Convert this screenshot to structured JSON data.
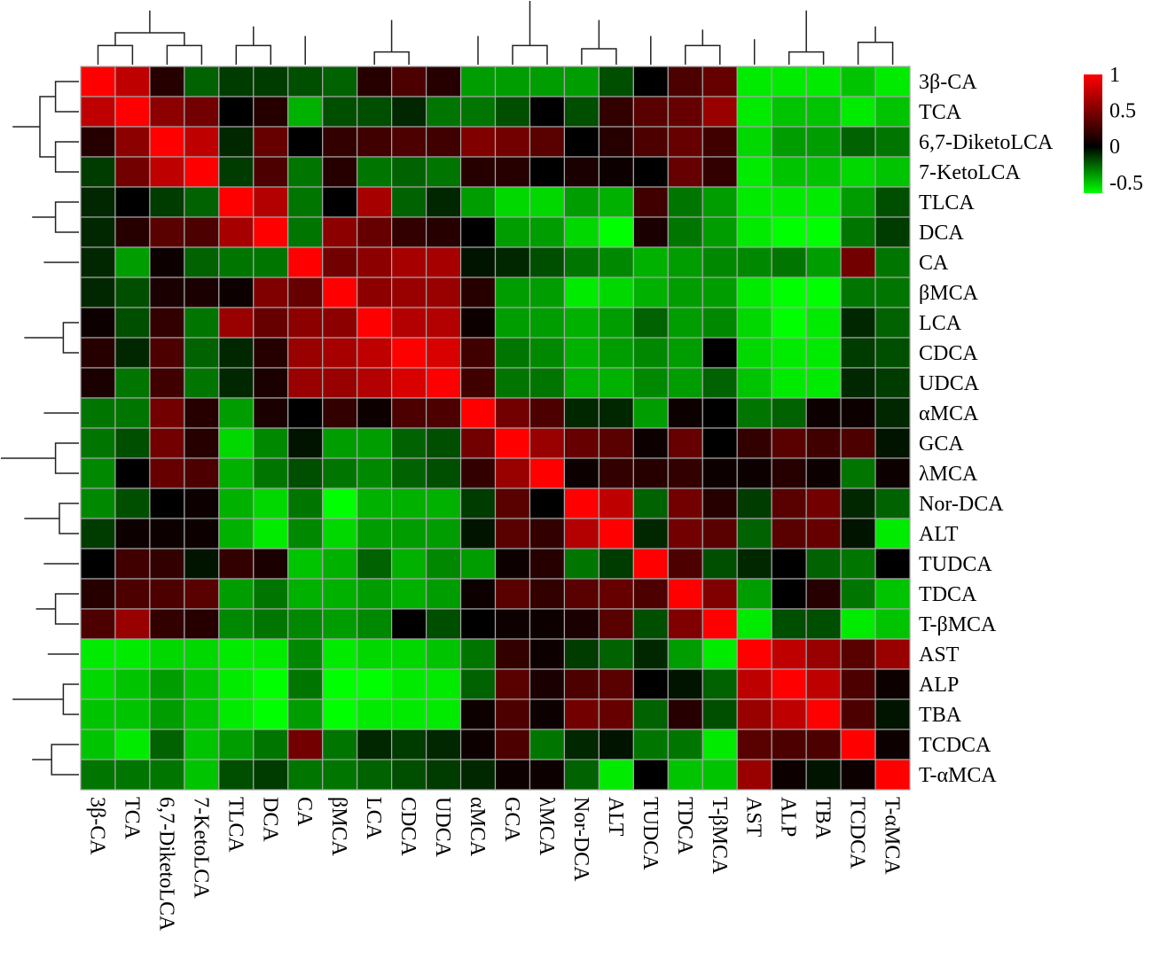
{
  "chart_data": {
    "type": "heatmap",
    "labels": [
      "3β-CA",
      "TCA",
      "6,7-DiketoLCA",
      "7-KetoLCA",
      "TLCA",
      "DCA",
      "CA",
      "βMCA",
      "LCA",
      "CDCA",
      "UDCA",
      "αMCA",
      "GCA",
      "λMCA",
      "Nor-DCA",
      "ALT",
      "TUDCA",
      "TDCA",
      "T-βMCA",
      "AST",
      "ALP",
      "TBA",
      "TCDCA",
      "T-αMCA"
    ],
    "values": [
      [
        1.0,
        0.75,
        0.15,
        -0.25,
        -0.15,
        -0.15,
        -0.2,
        -0.25,
        0.15,
        0.3,
        0.15,
        -0.4,
        -0.4,
        -0.4,
        -0.4,
        -0.2,
        0.0,
        0.3,
        0.4,
        -0.6,
        -0.6,
        -0.6,
        -0.5,
        -0.6
      ],
      [
        0.75,
        1.0,
        0.55,
        0.45,
        0.0,
        0.15,
        -0.45,
        -0.2,
        -0.2,
        -0.1,
        -0.3,
        -0.3,
        -0.2,
        0.0,
        -0.2,
        0.2,
        0.35,
        0.4,
        0.6,
        -0.6,
        -0.5,
        -0.5,
        -0.6,
        -0.5
      ],
      [
        0.15,
        0.55,
        1.0,
        0.75,
        -0.1,
        0.4,
        0.0,
        0.2,
        0.25,
        0.3,
        0.25,
        0.5,
        0.45,
        0.35,
        0.0,
        0.15,
        0.3,
        0.4,
        0.25,
        -0.55,
        -0.4,
        -0.4,
        -0.25,
        -0.3
      ],
      [
        -0.15,
        0.45,
        0.75,
        1.0,
        -0.15,
        0.3,
        -0.3,
        0.15,
        -0.3,
        -0.25,
        -0.3,
        0.15,
        0.15,
        0.0,
        0.1,
        0.05,
        0.0,
        0.4,
        0.2,
        -0.6,
        -0.5,
        -0.5,
        -0.55,
        -0.5
      ],
      [
        -0.1,
        0.0,
        -0.15,
        -0.25,
        1.0,
        0.7,
        -0.3,
        0.0,
        0.65,
        -0.25,
        -0.1,
        -0.4,
        -0.55,
        -0.55,
        -0.4,
        -0.45,
        0.25,
        -0.3,
        -0.4,
        -0.6,
        -0.6,
        -0.6,
        -0.4,
        -0.2
      ],
      [
        -0.1,
        0.15,
        0.35,
        0.3,
        0.65,
        1.0,
        -0.3,
        0.55,
        0.4,
        0.2,
        0.15,
        0.0,
        -0.4,
        -0.4,
        -0.55,
        -0.65,
        0.1,
        -0.3,
        -0.4,
        -0.6,
        -0.8,
        -0.8,
        -0.3,
        -0.15
      ],
      [
        -0.1,
        -0.4,
        0.05,
        -0.25,
        -0.3,
        -0.3,
        1.0,
        0.45,
        0.55,
        0.65,
        0.65,
        -0.05,
        -0.1,
        -0.2,
        -0.3,
        -0.35,
        -0.45,
        -0.4,
        -0.35,
        -0.35,
        -0.3,
        -0.4,
        0.45,
        -0.3
      ],
      [
        -0.1,
        -0.2,
        0.1,
        0.1,
        0.05,
        0.5,
        0.4,
        1.0,
        0.55,
        0.6,
        0.6,
        0.15,
        -0.4,
        -0.4,
        -0.6,
        -0.55,
        -0.45,
        -0.4,
        -0.4,
        -0.6,
        -0.75,
        -0.75,
        -0.3,
        -0.3
      ],
      [
        0.05,
        -0.2,
        0.2,
        -0.3,
        0.6,
        0.4,
        0.55,
        0.55,
        1.0,
        0.7,
        0.7,
        0.05,
        -0.4,
        -0.4,
        -0.45,
        -0.4,
        -0.25,
        -0.4,
        -0.35,
        -0.55,
        -0.65,
        -0.6,
        -0.1,
        -0.25
      ],
      [
        0.15,
        -0.1,
        0.3,
        -0.25,
        -0.1,
        0.15,
        0.6,
        0.65,
        0.75,
        1.0,
        0.85,
        0.25,
        -0.3,
        -0.35,
        -0.45,
        -0.4,
        -0.35,
        -0.4,
        0.0,
        -0.55,
        -0.6,
        -0.6,
        -0.15,
        -0.2
      ],
      [
        0.1,
        -0.3,
        0.25,
        -0.3,
        -0.1,
        0.1,
        0.6,
        0.6,
        0.7,
        0.85,
        1.0,
        0.25,
        -0.3,
        -0.3,
        -0.45,
        -0.45,
        -0.35,
        -0.4,
        -0.25,
        -0.5,
        -0.6,
        -0.6,
        -0.1,
        -0.15
      ],
      [
        -0.3,
        -0.3,
        0.45,
        0.15,
        -0.4,
        0.1,
        0.0,
        0.2,
        0.05,
        0.3,
        0.3,
        1.0,
        0.45,
        0.3,
        -0.1,
        -0.1,
        -0.4,
        0.05,
        0.0,
        -0.3,
        -0.25,
        0.05,
        0.05,
        -0.1
      ],
      [
        -0.3,
        -0.2,
        0.45,
        0.15,
        -0.55,
        -0.35,
        -0.05,
        -0.4,
        -0.4,
        -0.25,
        -0.2,
        0.45,
        1.0,
        0.6,
        0.4,
        0.35,
        0.05,
        0.4,
        0.0,
        0.2,
        0.35,
        0.25,
        0.3,
        -0.05
      ],
      [
        -0.35,
        0.0,
        0.4,
        0.3,
        -0.45,
        -0.3,
        -0.2,
        -0.3,
        -0.35,
        -0.25,
        -0.2,
        0.2,
        0.6,
        1.0,
        0.05,
        0.2,
        0.15,
        0.2,
        0.05,
        0.05,
        0.15,
        0.05,
        -0.3,
        0.05
      ],
      [
        -0.35,
        -0.2,
        0.0,
        0.05,
        -0.45,
        -0.55,
        -0.3,
        -0.65,
        -0.45,
        -0.45,
        -0.45,
        -0.15,
        0.35,
        0.0,
        1.0,
        0.75,
        -0.25,
        0.45,
        0.15,
        -0.15,
        0.35,
        0.45,
        -0.1,
        -0.25
      ],
      [
        -0.15,
        0.05,
        0.05,
        0.05,
        -0.45,
        -0.6,
        -0.35,
        -0.55,
        -0.4,
        -0.4,
        -0.4,
        -0.05,
        0.35,
        0.2,
        0.7,
        1.0,
        -0.1,
        0.45,
        0.35,
        -0.25,
        0.35,
        0.4,
        -0.05,
        -0.6
      ],
      [
        0.0,
        0.25,
        0.2,
        -0.05,
        0.2,
        0.1,
        -0.5,
        -0.45,
        -0.25,
        -0.45,
        -0.35,
        -0.4,
        0.05,
        0.15,
        -0.3,
        -0.15,
        1.0,
        0.3,
        -0.2,
        -0.1,
        0.0,
        -0.25,
        -0.3,
        0.0
      ],
      [
        0.15,
        0.3,
        0.3,
        0.35,
        -0.4,
        -0.3,
        -0.45,
        -0.45,
        -0.4,
        -0.45,
        -0.4,
        0.05,
        0.35,
        0.2,
        0.35,
        0.4,
        0.3,
        1.0,
        0.5,
        -0.4,
        0.0,
        0.15,
        -0.3,
        -0.5
      ],
      [
        0.3,
        0.6,
        0.2,
        0.15,
        -0.35,
        -0.3,
        -0.35,
        -0.4,
        -0.35,
        0.0,
        -0.2,
        0.0,
        0.05,
        0.05,
        0.1,
        0.35,
        -0.2,
        0.5,
        1.0,
        -0.6,
        -0.2,
        -0.2,
        -0.6,
        -0.5
      ],
      [
        -0.6,
        -0.6,
        -0.55,
        -0.55,
        -0.6,
        -0.6,
        -0.35,
        -0.6,
        -0.55,
        -0.55,
        -0.5,
        -0.3,
        0.2,
        0.05,
        -0.15,
        -0.25,
        -0.1,
        -0.4,
        -0.6,
        1.0,
        0.75,
        0.6,
        0.35,
        0.6
      ],
      [
        -0.55,
        -0.5,
        -0.4,
        -0.5,
        -0.6,
        -0.75,
        -0.3,
        -0.8,
        -0.65,
        -0.6,
        -0.6,
        -0.25,
        0.35,
        0.1,
        0.3,
        0.35,
        0.0,
        -0.05,
        -0.25,
        0.75,
        1.0,
        0.75,
        0.3,
        0.05
      ],
      [
        -0.5,
        -0.5,
        -0.4,
        -0.5,
        -0.6,
        -0.75,
        -0.4,
        -0.75,
        -0.6,
        -0.6,
        -0.6,
        0.05,
        0.3,
        0.05,
        0.45,
        0.4,
        -0.25,
        0.15,
        -0.2,
        0.6,
        0.75,
        1.0,
        0.3,
        -0.05
      ],
      [
        -0.5,
        -0.6,
        -0.25,
        -0.5,
        -0.4,
        -0.3,
        0.45,
        -0.3,
        -0.1,
        -0.15,
        -0.1,
        0.05,
        0.3,
        -0.3,
        -0.1,
        -0.05,
        -0.3,
        -0.3,
        -0.6,
        0.35,
        0.3,
        0.3,
        1.0,
        0.05
      ],
      [
        -0.3,
        -0.3,
        -0.3,
        -0.5,
        -0.2,
        -0.15,
        -0.3,
        -0.3,
        -0.25,
        -0.2,
        -0.15,
        -0.1,
        0.05,
        0.05,
        -0.25,
        -0.6,
        0.0,
        -0.5,
        -0.5,
        0.6,
        0.05,
        -0.05,
        0.05,
        1.0
      ]
    ],
    "color_scale": {
      "min": -0.65,
      "max": 1,
      "stops": [
        {
          "value": -0.65,
          "color": "#00ff00"
        },
        {
          "value": 0,
          "color": "#000000"
        },
        {
          "value": 1,
          "color": "#ff0000"
        }
      ]
    },
    "legend": {
      "position": "top-right",
      "ticks": [
        {
          "value": 1,
          "label": "1"
        },
        {
          "value": 0.5,
          "label": "0.5"
        },
        {
          "value": 0,
          "label": "0"
        },
        {
          "value": -0.5,
          "label": "-0.5"
        }
      ]
    },
    "col_dendrogram": [
      [
        0,
        1,
        0.3
      ],
      [
        2,
        3,
        0.3
      ],
      [
        24,
        25,
        0.5
      ],
      [
        4,
        5,
        0.3
      ],
      [
        8,
        9,
        0.2
      ],
      [
        29,
        10,
        0.25
      ],
      [
        30,
        7,
        0.35
      ],
      [
        6,
        31,
        0.45
      ],
      [
        27,
        32,
        0.6
      ],
      [
        28,
        33,
        0.7
      ],
      [
        26,
        34,
        0.85
      ],
      [
        12,
        13,
        0.3
      ],
      [
        11,
        36,
        0.45
      ],
      [
        14,
        15,
        0.25
      ],
      [
        17,
        18,
        0.3
      ],
      [
        16,
        39,
        0.45
      ],
      [
        38,
        40,
        0.55
      ],
      [
        37,
        41,
        0.7
      ],
      [
        20,
        21,
        0.2
      ],
      [
        19,
        43,
        0.4
      ],
      [
        22,
        23,
        0.35
      ],
      [
        44,
        45,
        0.6
      ],
      [
        42,
        46,
        0.85
      ],
      [
        35,
        47,
        1.0
      ]
    ],
    "row_dendrogram": [
      [
        0,
        1,
        0.3
      ],
      [
        2,
        3,
        0.3
      ],
      [
        24,
        25,
        0.5
      ],
      [
        4,
        5,
        0.3
      ],
      [
        8,
        9,
        0.2
      ],
      [
        29,
        10,
        0.25
      ],
      [
        30,
        7,
        0.35
      ],
      [
        6,
        31,
        0.45
      ],
      [
        27,
        32,
        0.6
      ],
      [
        28,
        33,
        0.7
      ],
      [
        26,
        34,
        0.85
      ],
      [
        12,
        13,
        0.3
      ],
      [
        11,
        36,
        0.45
      ],
      [
        14,
        15,
        0.25
      ],
      [
        17,
        18,
        0.3
      ],
      [
        16,
        39,
        0.45
      ],
      [
        38,
        40,
        0.55
      ],
      [
        37,
        41,
        0.7
      ],
      [
        20,
        21,
        0.2
      ],
      [
        19,
        43,
        0.4
      ],
      [
        22,
        23,
        0.35
      ],
      [
        44,
        45,
        0.6
      ],
      [
        42,
        46,
        0.85
      ],
      [
        35,
        47,
        1.0
      ]
    ]
  }
}
